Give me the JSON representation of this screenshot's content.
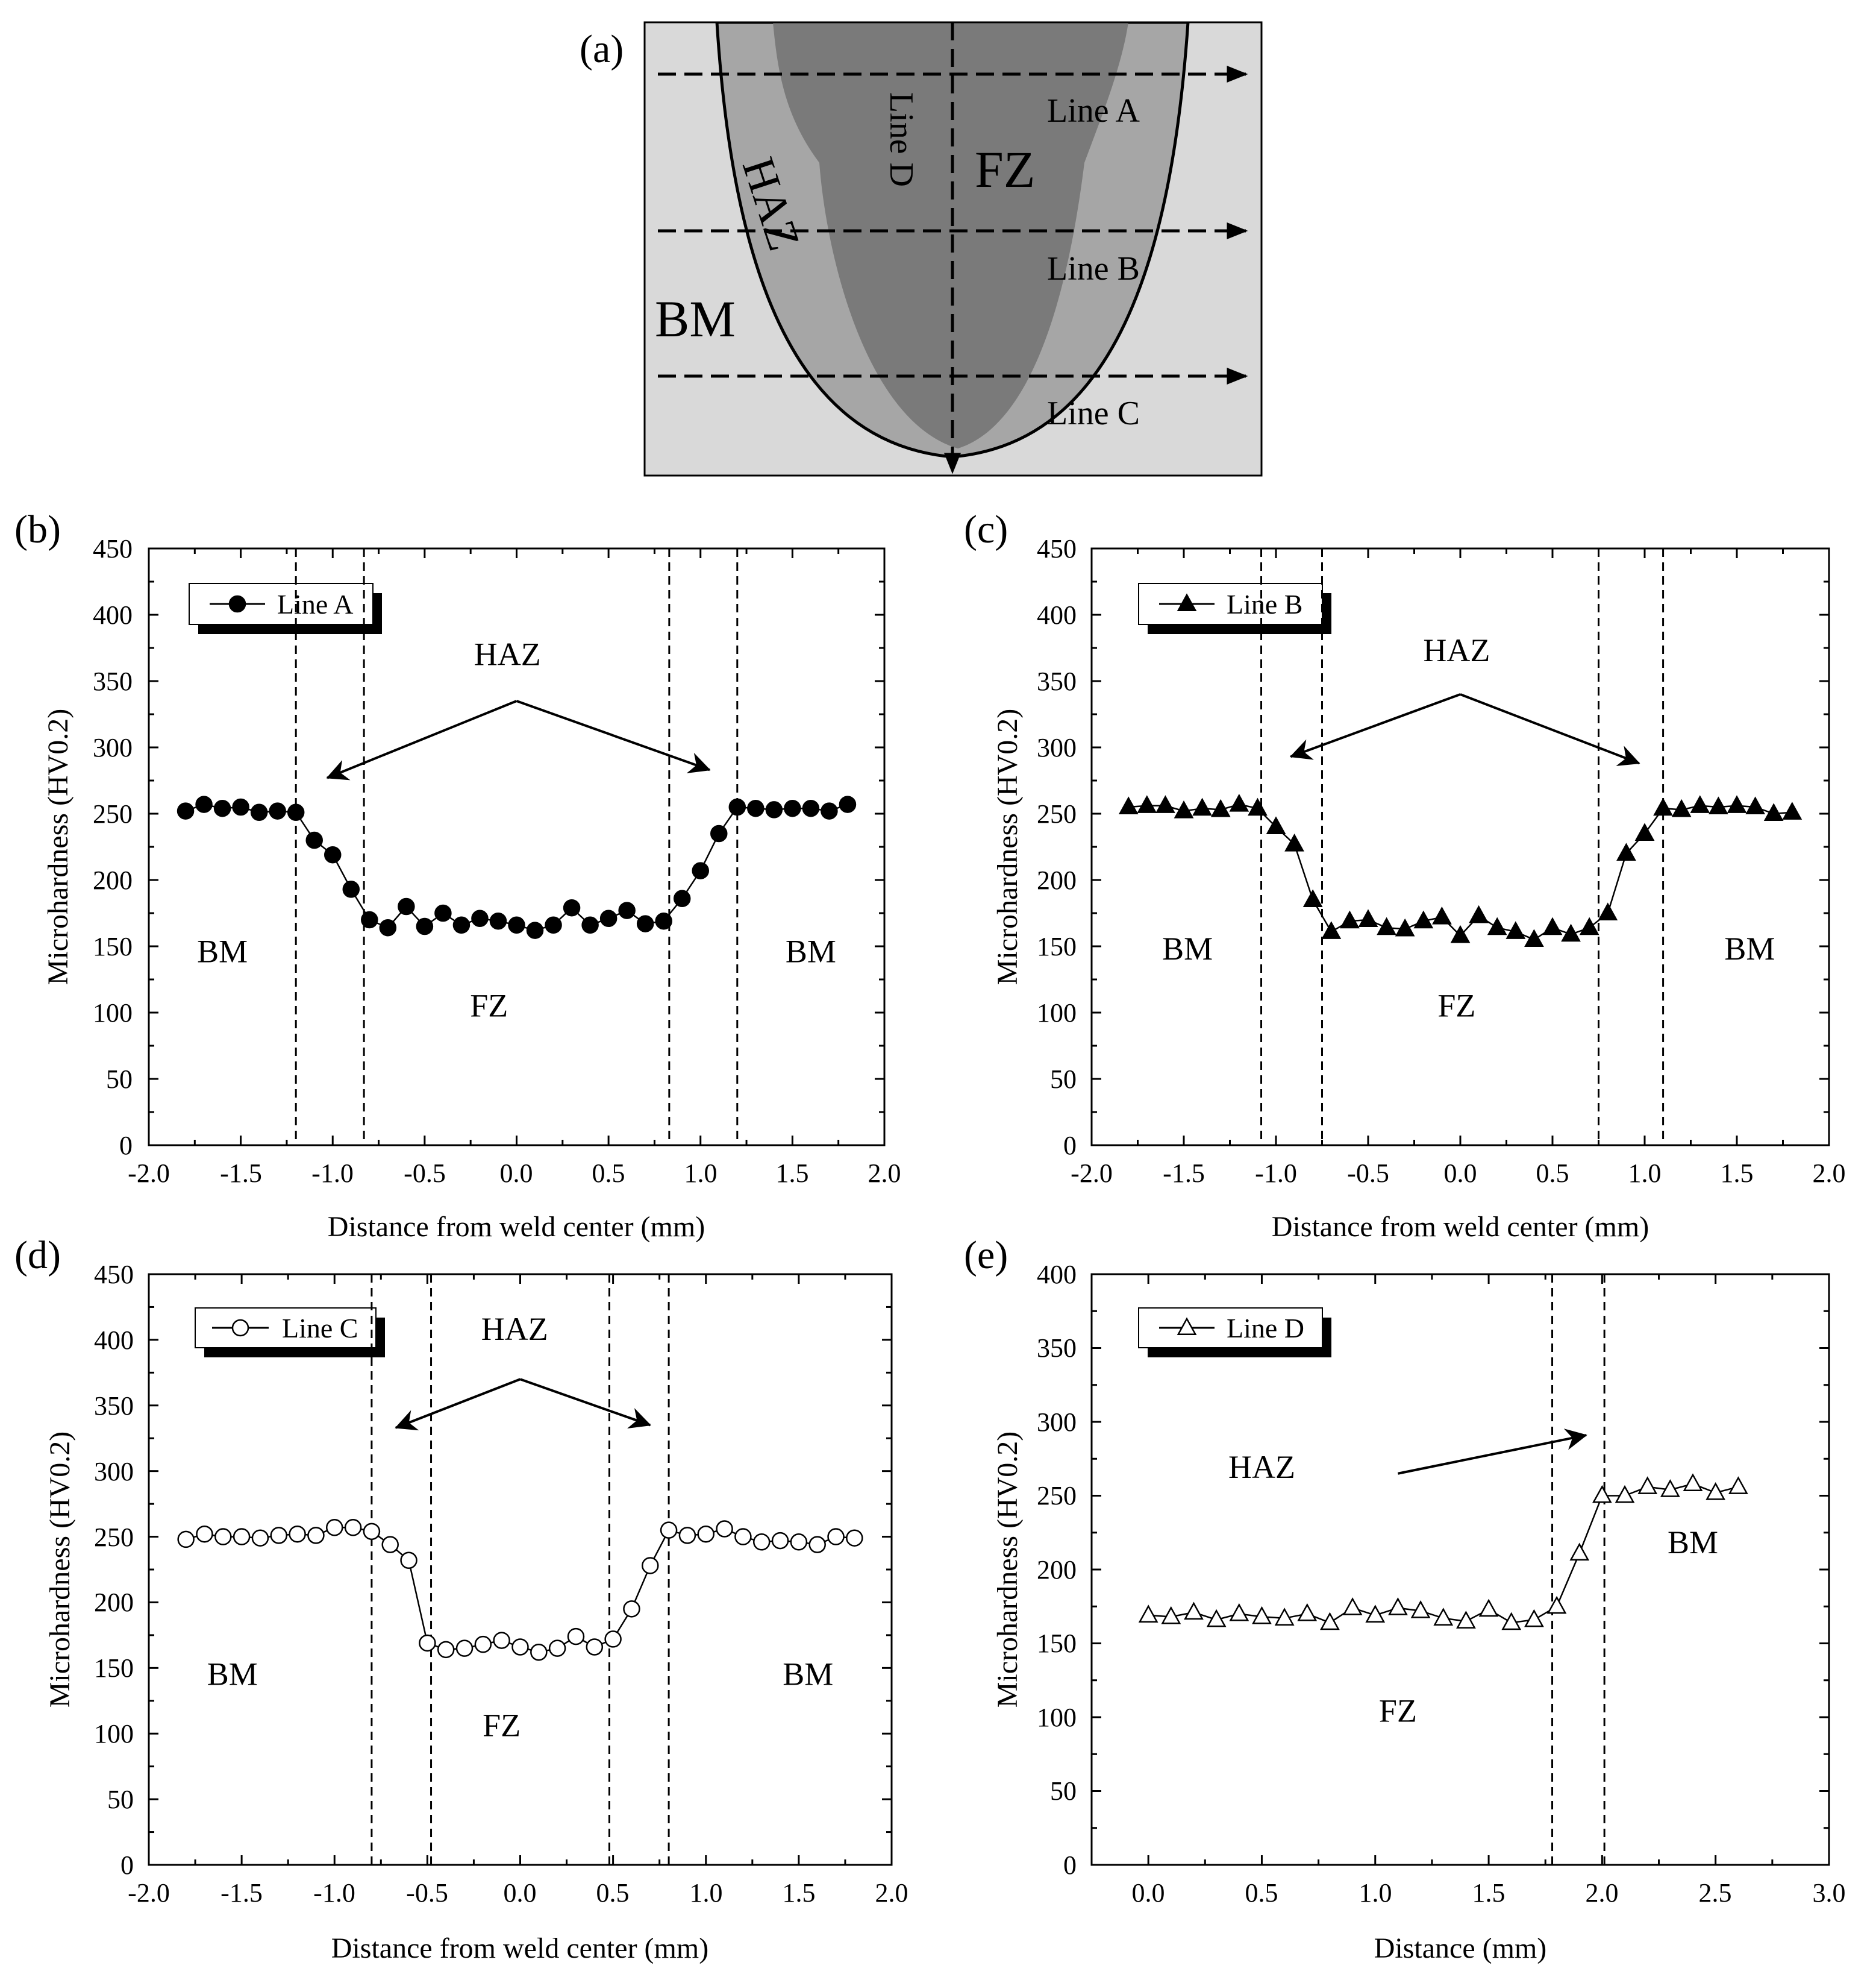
{
  "diagram_a": {
    "label": "(a)",
    "regions": {
      "haz": "HAZ",
      "fz": "FZ",
      "bm": "BM"
    },
    "lines": {
      "a": "Line A",
      "b": "Line B",
      "c": "Line C",
      "d": "Line D"
    },
    "colors": {
      "outer": "#d9d9d9",
      "haz": "#a6a6a6",
      "fz": "#7a7a7a"
    }
  },
  "chart_data": [
    {
      "id": "b",
      "panel_label": "(b)",
      "type": "line",
      "marker": "filled-circle",
      "series": [
        {
          "name": "Line A",
          "x": [
            -1.8,
            -1.7,
            -1.6,
            -1.5,
            -1.4,
            -1.3,
            -1.2,
            -1.1,
            -1.0,
            -0.9,
            -0.8,
            -0.7,
            -0.6,
            -0.5,
            -0.4,
            -0.3,
            -0.2,
            -0.1,
            0.0,
            0.1,
            0.2,
            0.3,
            0.4,
            0.5,
            0.6,
            0.7,
            0.8,
            0.9,
            1.0,
            1.1,
            1.2,
            1.3,
            1.4,
            1.5,
            1.6,
            1.7,
            1.8
          ],
          "values": [
            252,
            257,
            254,
            255,
            251,
            252,
            251,
            230,
            219,
            193,
            170,
            164,
            180,
            165,
            175,
            166,
            171,
            169,
            166,
            162,
            166,
            179,
            166,
            171,
            177,
            167,
            169,
            186,
            207,
            235,
            255,
            254,
            253,
            254,
            254,
            252,
            257
          ]
        }
      ],
      "xlabel": "Distance from weld center (mm)",
      "ylabel": "Microhardness (HV0.2)",
      "xlim": [
        -2.0,
        2.0
      ],
      "ylim": [
        0,
        450
      ],
      "xticks": [
        -2.0,
        -1.5,
        -1.0,
        -0.5,
        0.0,
        0.5,
        1.0,
        1.5,
        2.0
      ],
      "xtick_labels": [
        "-2.0",
        "-1.5",
        "-1.0",
        "-0.5",
        "0.0",
        "0.5",
        "1.0",
        "1.5",
        "2.0"
      ],
      "yticks": [
        0,
        50,
        100,
        150,
        200,
        250,
        300,
        350,
        400,
        450
      ],
      "ytick_labels": [
        "0",
        "50",
        "100",
        "150",
        "200",
        "250",
        "300",
        "350",
        "400",
        "450"
      ],
      "boundaries": [
        -1.2,
        -0.83,
        0.83,
        1.2
      ],
      "annotations": [
        {
          "text": "HAZ",
          "x": -0.05,
          "y": 362
        },
        {
          "text": "BM",
          "x": -1.6,
          "y": 138
        },
        {
          "text": "BM",
          "x": 1.6,
          "y": 138
        },
        {
          "text": "FZ",
          "x": -0.15,
          "y": 97
        }
      ],
      "arrows": [
        {
          "from": [
            0.0,
            335
          ],
          "to": [
            -1.03,
            277
          ]
        },
        {
          "from": [
            0.0,
            335
          ],
          "to": [
            1.05,
            283
          ]
        }
      ],
      "legend_position": "top-left"
    },
    {
      "id": "c",
      "panel_label": "(c)",
      "type": "line",
      "marker": "filled-triangle",
      "series": [
        {
          "name": "Line B",
          "x": [
            -1.8,
            -1.7,
            -1.6,
            -1.5,
            -1.4,
            -1.3,
            -1.2,
            -1.1,
            -1.0,
            -0.9,
            -0.8,
            -0.7,
            -0.6,
            -0.5,
            -0.4,
            -0.3,
            -0.2,
            -0.1,
            0.0,
            0.1,
            0.2,
            0.3,
            0.4,
            0.5,
            0.6,
            0.7,
            0.8,
            0.9,
            1.0,
            1.1,
            1.2,
            1.3,
            1.4,
            1.5,
            1.6,
            1.7,
            1.8
          ],
          "values": [
            255,
            256,
            256,
            252,
            254,
            253,
            257,
            254,
            240,
            227,
            185,
            161,
            169,
            170,
            164,
            163,
            169,
            172,
            158,
            173,
            164,
            161,
            155,
            164,
            159,
            164,
            175,
            220,
            235,
            254,
            253,
            256,
            255,
            256,
            255,
            250,
            251
          ]
        }
      ],
      "xlabel": "Distance from weld center (mm)",
      "ylabel": "Microhardness (HV0.2)",
      "xlim": [
        -2.0,
        2.0
      ],
      "ylim": [
        0,
        450
      ],
      "xticks": [
        -2.0,
        -1.5,
        -1.0,
        -0.5,
        0.0,
        0.5,
        1.0,
        1.5,
        2.0
      ],
      "xtick_labels": [
        "-2.0",
        "-1.5",
        "-1.0",
        "-0.5",
        "0.0",
        "0.5",
        "1.0",
        "1.5",
        "2.0"
      ],
      "yticks": [
        0,
        50,
        100,
        150,
        200,
        250,
        300,
        350,
        400,
        450
      ],
      "ytick_labels": [
        "0",
        "50",
        "100",
        "150",
        "200",
        "250",
        "300",
        "350",
        "400",
        "450"
      ],
      "boundaries": [
        -1.08,
        -0.75,
        0.75,
        1.1
      ],
      "annotations": [
        {
          "text": "HAZ",
          "x": -0.02,
          "y": 365
        },
        {
          "text": "BM",
          "x": -1.48,
          "y": 140
        },
        {
          "text": "BM",
          "x": 1.57,
          "y": 140
        },
        {
          "text": "FZ",
          "x": -0.02,
          "y": 97
        }
      ],
      "arrows": [
        {
          "from": [
            0.0,
            340
          ],
          "to": [
            -0.92,
            293
          ]
        },
        {
          "from": [
            0.0,
            340
          ],
          "to": [
            0.97,
            288
          ]
        }
      ],
      "legend_position": "top-left"
    },
    {
      "id": "d",
      "panel_label": "(d)",
      "type": "line",
      "marker": "open-circle",
      "series": [
        {
          "name": "Line C",
          "x": [
            -1.8,
            -1.7,
            -1.6,
            -1.5,
            -1.4,
            -1.3,
            -1.2,
            -1.1,
            -1.0,
            -0.9,
            -0.8,
            -0.7,
            -0.6,
            -0.5,
            -0.4,
            -0.3,
            -0.2,
            -0.1,
            0.0,
            0.1,
            0.2,
            0.3,
            0.4,
            0.5,
            0.6,
            0.7,
            0.8,
            0.9,
            1.0,
            1.1,
            1.2,
            1.3,
            1.4,
            1.5,
            1.6,
            1.7,
            1.8
          ],
          "values": [
            248,
            252,
            250,
            250,
            249,
            251,
            252,
            251,
            257,
            257,
            254,
            244,
            232,
            169,
            164,
            165,
            168,
            171,
            166,
            162,
            165,
            174,
            166,
            172,
            195,
            228,
            255,
            251,
            252,
            256,
            250,
            246,
            247,
            246,
            244,
            250,
            249
          ]
        }
      ],
      "xlabel": "Distance from weld center (mm)",
      "ylabel": "Microhardness (HV0.2)",
      "xlim": [
        -2.0,
        2.0
      ],
      "ylim": [
        0,
        450
      ],
      "xticks": [
        -2.0,
        -1.5,
        -1.0,
        -0.5,
        0.0,
        0.5,
        1.0,
        1.5,
        2.0
      ],
      "xtick_labels": [
        "-2.0",
        "-1.5",
        "-1.0",
        "-0.5",
        "0.0",
        "0.5",
        "1.0",
        "1.5",
        "2.0"
      ],
      "yticks": [
        0,
        50,
        100,
        150,
        200,
        250,
        300,
        350,
        400,
        450
      ],
      "ytick_labels": [
        "0",
        "50",
        "100",
        "150",
        "200",
        "250",
        "300",
        "350",
        "400",
        "450"
      ],
      "boundaries": [
        -0.8,
        -0.48,
        0.48,
        0.8
      ],
      "annotations": [
        {
          "text": "HAZ",
          "x": -0.03,
          "y": 400
        },
        {
          "text": "BM",
          "x": -1.55,
          "y": 137
        },
        {
          "text": "BM",
          "x": 1.55,
          "y": 137
        },
        {
          "text": "FZ",
          "x": -0.1,
          "y": 98
        }
      ],
      "arrows": [
        {
          "from": [
            0.0,
            370
          ],
          "to": [
            -0.67,
            333
          ]
        },
        {
          "from": [
            0.0,
            370
          ],
          "to": [
            0.7,
            335
          ]
        }
      ],
      "legend_position": "top-left"
    },
    {
      "id": "e",
      "panel_label": "(e)",
      "type": "line",
      "marker": "open-triangle",
      "series": [
        {
          "name": "Line D",
          "x": [
            0.0,
            0.1,
            0.2,
            0.3,
            0.4,
            0.5,
            0.6,
            0.7,
            0.8,
            0.9,
            1.0,
            1.1,
            1.2,
            1.3,
            1.4,
            1.5,
            1.6,
            1.7,
            1.8,
            1.9,
            2.0,
            2.1,
            2.2,
            2.3,
            2.4,
            2.5,
            2.6
          ],
          "values": [
            169,
            168,
            171,
            166,
            170,
            168,
            167,
            170,
            164,
            174,
            169,
            174,
            172,
            167,
            165,
            173,
            164,
            166,
            175,
            211,
            250,
            250,
            256,
            254,
            258,
            252,
            256
          ]
        }
      ],
      "xlabel": "Distance (mm)",
      "ylabel": "Microhardness (HV0.2)",
      "xlim": [
        -0.25,
        3.0
      ],
      "ylim": [
        0,
        400
      ],
      "xticks": [
        0.0,
        0.5,
        1.0,
        1.5,
        2.0,
        2.5,
        3.0
      ],
      "xtick_labels": [
        "0.0",
        "0.5",
        "1.0",
        "1.5",
        "2.0",
        "2.5",
        "3.0"
      ],
      "yticks": [
        0,
        50,
        100,
        150,
        200,
        250,
        300,
        350,
        400
      ],
      "ytick_labels": [
        "0",
        "50",
        "100",
        "150",
        "200",
        "250",
        "300",
        "350",
        "400"
      ],
      "boundaries": [
        1.78,
        2.01
      ],
      "annotations": [
        {
          "text": "HAZ",
          "x": 0.5,
          "y": 262
        },
        {
          "text": "BM",
          "x": 2.4,
          "y": 211
        },
        {
          "text": "FZ",
          "x": 1.1,
          "y": 97
        }
      ],
      "arrows": [
        {
          "from": [
            1.1,
            265
          ],
          "to": [
            1.93,
            291
          ]
        }
      ],
      "legend_position": "top-left"
    }
  ]
}
